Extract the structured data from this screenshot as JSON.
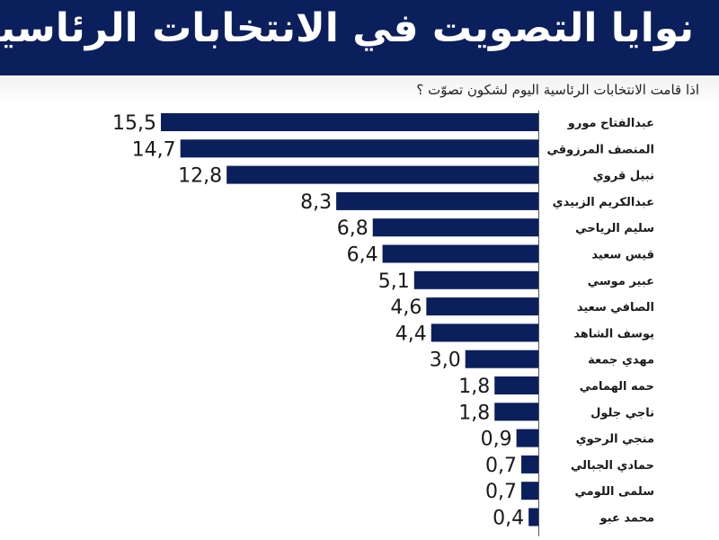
{
  "header": {
    "title": "نوايا التصويت في الانتخابات الرئاسية",
    "subtitle": "اذا قامت الانتخابات الرئاسية اليوم لشكون تصوّت ؟"
  },
  "colors": {
    "banner": "#0b1f5c",
    "bar": "#0b1f5c",
    "text": "#1a1a1a"
  },
  "chart_data": {
    "type": "bar",
    "orientation": "horizontal",
    "title": "نوايا التصويت في الانتخابات الرئاسية",
    "subtitle": "اذا قامت الانتخابات الرئاسية اليوم لشكون تصوّت ؟",
    "categories": [
      "عبدالفتاح مورو",
      "المنصف المرزوقي",
      "نبيل قروي",
      "عبدالكريم الزبيدي",
      "سليم الرياحي",
      "قيس سعيد",
      "عبير موسي",
      "الصافي سعيد",
      "يوسف الشاهد",
      "مهدي جمعة",
      "حمه الهمامي",
      "ناجي جلول",
      "منجي الرحوي",
      "حمادي الجبالي",
      "سلمى اللومي",
      "محمد عبو"
    ],
    "values": [
      15.5,
      14.7,
      12.8,
      8.3,
      6.8,
      6.4,
      5.1,
      4.6,
      4.4,
      3.0,
      1.8,
      1.8,
      0.9,
      0.7,
      0.7,
      0.4
    ],
    "value_labels": [
      "15,5",
      "14,7",
      "12,8",
      "8,3",
      "6,8",
      "6,4",
      "5,1",
      "4,6",
      "4,4",
      "3,0",
      "1,8",
      "1,8",
      "0,9",
      "0,7",
      "0,7",
      "0,4"
    ],
    "xlabel": "",
    "ylabel": "",
    "xlim": [
      0,
      15.5
    ],
    "grid": false,
    "legend": "none"
  }
}
